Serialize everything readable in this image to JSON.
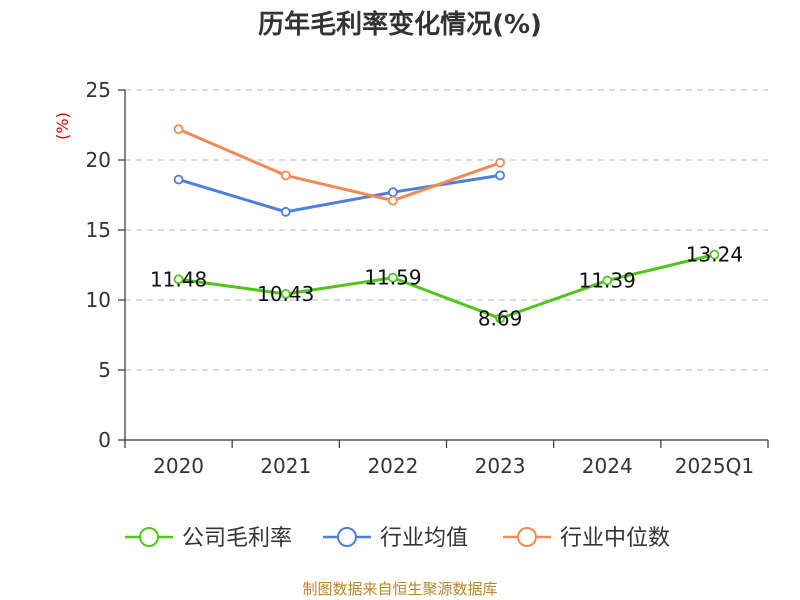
{
  "chart_data": {
    "type": "line",
    "title": "历年毛利率变化情况(%)",
    "ylabel": "(%)",
    "categories": [
      "2020",
      "2021",
      "2022",
      "2023",
      "2024",
      "2025Q1"
    ],
    "yticks": [
      "0",
      "5",
      "10",
      "15",
      "20",
      "25"
    ],
    "ylim": [
      0,
      25
    ],
    "grid": true,
    "legend_position": "bottom",
    "series": [
      {
        "name": "公司毛利率",
        "color": "#52c41a",
        "values": [
          11.48,
          10.43,
          11.59,
          8.69,
          11.39,
          13.24
        ],
        "labels": [
          "11.48",
          "10.43",
          "11.59",
          "8.69",
          "11.39",
          "13.24"
        ]
      },
      {
        "name": "行业均值",
        "color": "#4e7fde",
        "values": [
          18.6,
          16.3,
          17.7,
          18.9,
          null,
          null
        ]
      },
      {
        "name": "行业中位数",
        "color": "#f28a55",
        "values": [
          22.2,
          18.9,
          17.1,
          19.8,
          null,
          null
        ]
      }
    ]
  },
  "source": "制图数据来自恒生聚源数据库"
}
